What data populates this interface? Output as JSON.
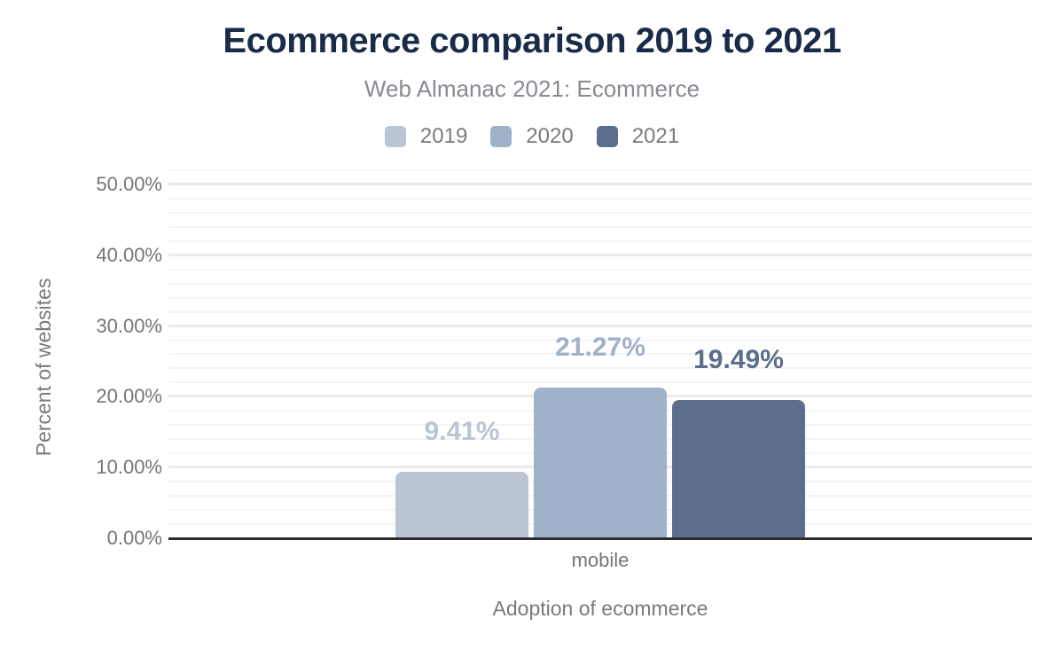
{
  "title": "Ecommerce comparison 2019 to 2021",
  "subtitle": "Web Almanac 2021: Ecommerce",
  "legend": [
    {
      "label": "2019",
      "color": "#bcc5d3"
    },
    {
      "label": "2020",
      "color": "#a0b1ca"
    },
    {
      "label": "2021",
      "color": "#5d6e8c"
    }
  ],
  "chart_data": {
    "type": "bar",
    "title": "Ecommerce comparison 2019 to 2021",
    "subtitle": "Web Almanac 2021: Ecommerce",
    "categories": [
      "mobile"
    ],
    "series": [
      {
        "name": "2019",
        "values": [
          9.41
        ],
        "display": [
          "9.41%"
        ],
        "color": "#bcc5d3"
      },
      {
        "name": "2020",
        "values": [
          21.27
        ],
        "display": [
          "21.27%"
        ],
        "color": "#a0b1ca"
      },
      {
        "name": "2021",
        "values": [
          19.49
        ],
        "display": [
          "19.49%"
        ],
        "color": "#5d6e8c"
      }
    ],
    "xlabel": "Adoption of ecommerce",
    "ylabel": "Percent of websites",
    "ylim": [
      0,
      52
    ],
    "yticks": [
      {
        "value": 0,
        "label": "0.00%"
      },
      {
        "value": 10,
        "label": "10.00%"
      },
      {
        "value": 20,
        "label": "20.00%"
      },
      {
        "value": 30,
        "label": "30.00%"
      },
      {
        "value": 40,
        "label": "40.00%"
      },
      {
        "value": 50,
        "label": "50.00%"
      }
    ],
    "grid": true,
    "gridline_step": 2,
    "legend_position": "top"
  },
  "colors": {
    "title_text": "#1a2b49",
    "subtitle_text": "#878b91",
    "muted_text": "#757575",
    "axis_line": "#2b2b2b",
    "gridline_minor": "#f4f4f4",
    "gridline_major": "#eaeaea"
  }
}
